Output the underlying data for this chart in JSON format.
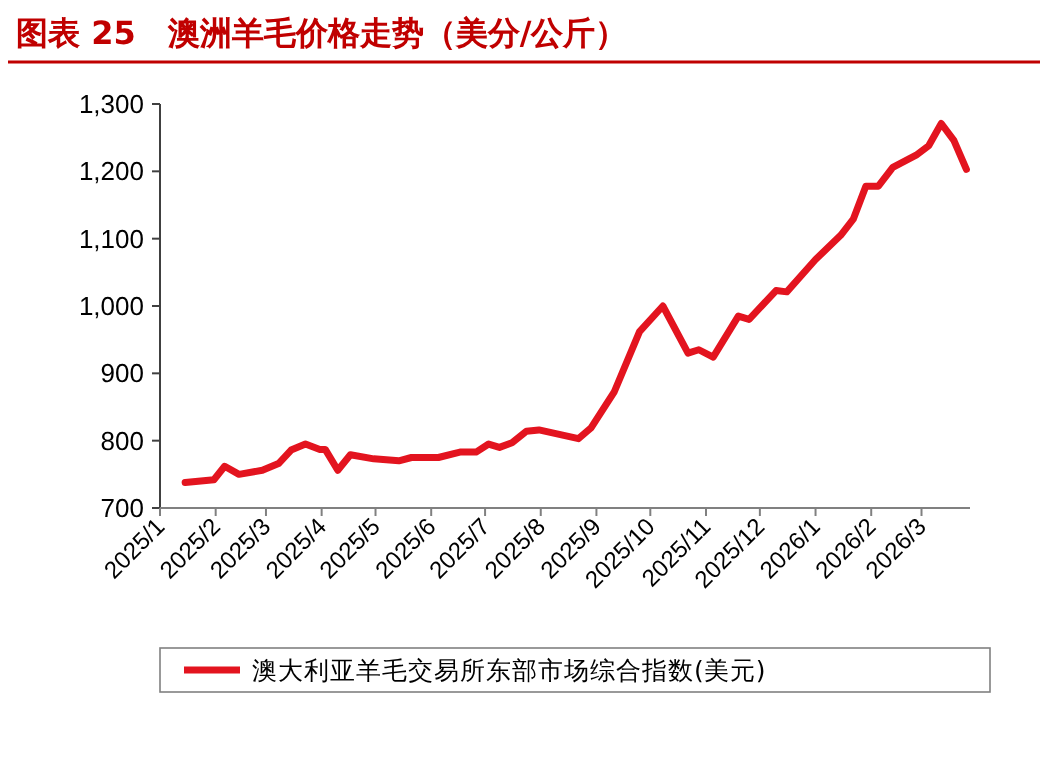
{
  "chart_data": {
    "type": "line",
    "title": "图表 25　澳洲羊毛价格走势（美分/公斤）",
    "x": [
      "2025-01-15",
      "2025-01-31",
      "2025-02-06",
      "2025-02-14",
      "2025-02-27",
      "2025-03-08",
      "2025-03-15",
      "2025-03-23",
      "2025-03-31",
      "2025-04-03",
      "2025-04-10",
      "2025-04-17",
      "2025-04-30",
      "2025-05-14",
      "2025-05-21",
      "2025-06-05",
      "2025-06-17",
      "2025-06-26",
      "2025-07-03",
      "2025-07-09",
      "2025-07-16",
      "2025-07-24",
      "2025-07-31",
      "2025-08-22",
      "2025-08-29",
      "2025-09-11",
      "2025-09-25",
      "2025-10-08",
      "2025-10-22",
      "2025-10-28",
      "2025-11-05",
      "2025-11-19",
      "2025-11-25",
      "2025-12-10",
      "2025-12-16",
      "2026-01-01",
      "2026-01-15",
      "2026-01-22",
      "2026-01-29",
      "2026-02-05",
      "2026-02-13",
      "2026-02-26",
      "2026-03-05",
      "2026-03-12",
      "2026-03-19",
      "2026-03-26"
    ],
    "series": [
      {
        "name": "澳大利亚羊毛交易所东部市场综合指数(美元)",
        "color": "#e3141f",
        "values": [
          738,
          742,
          762,
          750,
          756,
          766,
          786,
          795,
          787,
          787,
          756,
          779,
          773,
          770,
          775,
          775,
          783,
          783,
          795,
          790,
          797,
          814,
          816,
          803,
          819,
          873,
          962,
          1000,
          930,
          935,
          924,
          985,
          980,
          1023,
          1021,
          1069,
          1105,
          1129,
          1178,
          1178,
          1206,
          1224,
          1238,
          1271,
          1246,
          1203
        ]
      }
    ],
    "xlim": [
      "2025-01-01",
      "2026-03-28"
    ],
    "xticks": [
      {
        "value": "2025-01-01",
        "label": "2025/1"
      },
      {
        "value": "2025-02-01",
        "label": "2025/2"
      },
      {
        "value": "2025-03-01",
        "label": "2025/3"
      },
      {
        "value": "2025-04-01",
        "label": "2025/4"
      },
      {
        "value": "2025-05-01",
        "label": "2025/5"
      },
      {
        "value": "2025-06-01",
        "label": "2025/6"
      },
      {
        "value": "2025-07-01",
        "label": "2025/7"
      },
      {
        "value": "2025-08-01",
        "label": "2025/8"
      },
      {
        "value": "2025-09-01",
        "label": "2025/9"
      },
      {
        "value": "2025-10-01",
        "label": "2025/10"
      },
      {
        "value": "2025-11-01",
        "label": "2025/11"
      },
      {
        "value": "2025-12-01",
        "label": "2025/12"
      },
      {
        "value": "2026-01-01",
        "label": "2026/1"
      },
      {
        "value": "2026-02-01",
        "label": "2026/2"
      },
      {
        "value": "2026-03-01",
        "label": "2026/3"
      }
    ],
    "ylim": [
      700,
      1300
    ],
    "yticks": [
      700,
      800,
      900,
      {
        "value": 1000,
        "label": "1,000"
      },
      {
        "value": 1100,
        "label": "1,100"
      },
      {
        "value": 1200,
        "label": "1,200"
      },
      {
        "value": 1300,
        "label": "1,300"
      }
    ],
    "grid": false,
    "legend": "bottom",
    "marker": "none",
    "line_style": "solid"
  }
}
